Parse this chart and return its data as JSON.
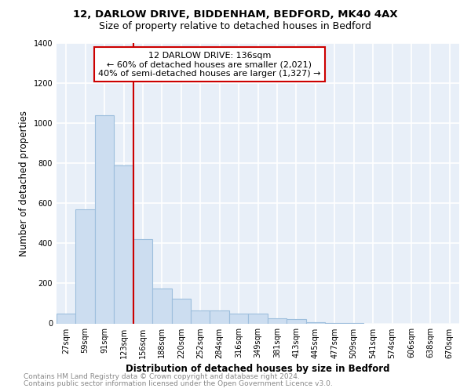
{
  "title1": "12, DARLOW DRIVE, BIDDENHAM, BEDFORD, MK40 4AX",
  "title2": "Size of property relative to detached houses in Bedford",
  "xlabel": "Distribution of detached houses by size in Bedford",
  "ylabel": "Number of detached properties",
  "categories": [
    "27sqm",
    "59sqm",
    "91sqm",
    "123sqm",
    "156sqm",
    "188sqm",
    "220sqm",
    "252sqm",
    "284sqm",
    "316sqm",
    "349sqm",
    "381sqm",
    "413sqm",
    "445sqm",
    "477sqm",
    "509sqm",
    "541sqm",
    "574sqm",
    "606sqm",
    "638sqm",
    "670sqm"
  ],
  "values": [
    50,
    570,
    1040,
    790,
    420,
    175,
    125,
    65,
    65,
    50,
    50,
    25,
    20,
    5,
    3,
    1,
    0,
    0,
    0,
    0,
    0
  ],
  "bar_color": "#ccddf0",
  "bar_edge_color": "#9dbedd",
  "vline_x": 3.5,
  "vline_color": "#cc0000",
  "annotation_line1": "12 DARLOW DRIVE: 136sqm",
  "annotation_line2": "← 60% of detached houses are smaller (2,021)",
  "annotation_line3": "40% of semi-detached houses are larger (1,327) →",
  "annotation_box_facecolor": "#ffffff",
  "annotation_box_edgecolor": "#cc0000",
  "ylim": [
    0,
    1400
  ],
  "yticks": [
    0,
    200,
    400,
    600,
    800,
    1000,
    1200,
    1400
  ],
  "background_color": "#e8eff8",
  "grid_color": "#ffffff",
  "footer1": "Contains HM Land Registry data © Crown copyright and database right 2024.",
  "footer2": "Contains public sector information licensed under the Open Government Licence v3.0.",
  "title_fontsize": 9.5,
  "subtitle_fontsize": 9,
  "axis_label_fontsize": 8.5,
  "tick_fontsize": 7,
  "footer_fontsize": 6.5,
  "annotation_fontsize": 8
}
